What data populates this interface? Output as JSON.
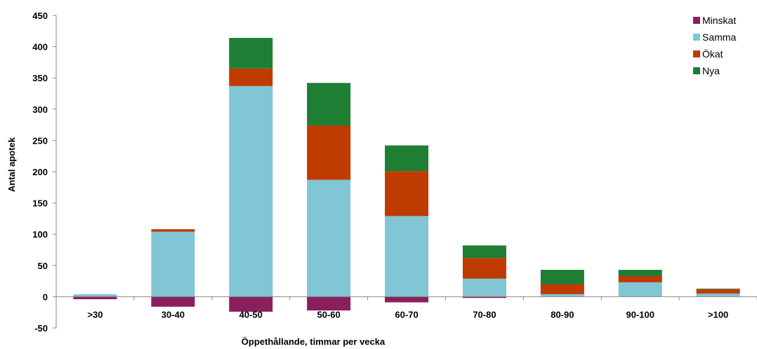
{
  "chart_data": {
    "type": "bar",
    "stacked": true,
    "categories": [
      ">30",
      "30-40",
      "40-50",
      "50-60",
      "60-70",
      "70-80",
      "80-90",
      "90-100",
      ">100"
    ],
    "series": [
      {
        "name": "Minskat",
        "color": "#8B1F5E",
        "values": [
          -4,
          -16,
          -24,
          -22,
          -9,
          -2,
          0,
          0,
          0
        ]
      },
      {
        "name": "Samma",
        "color": "#80C6D5",
        "values": [
          4,
          104,
          337,
          187,
          129,
          29,
          4,
          23,
          5
        ]
      },
      {
        "name": "Ökat",
        "color": "#C03B00",
        "values": [
          0,
          4,
          28,
          87,
          72,
          33,
          16,
          10,
          7
        ]
      },
      {
        "name": "Nya",
        "color": "#1E7E34",
        "values": [
          0,
          0,
          49,
          68,
          41,
          20,
          23,
          10,
          1
        ]
      }
    ],
    "xlabel": "Öppethållande, timmar per vecka",
    "ylabel": "Antal apotek",
    "ylim": [
      -50,
      450
    ],
    "yticks": [
      -50,
      0,
      50,
      100,
      150,
      200,
      250,
      300,
      350,
      400,
      450
    ],
    "legend_position": "top-right",
    "grid": false
  }
}
